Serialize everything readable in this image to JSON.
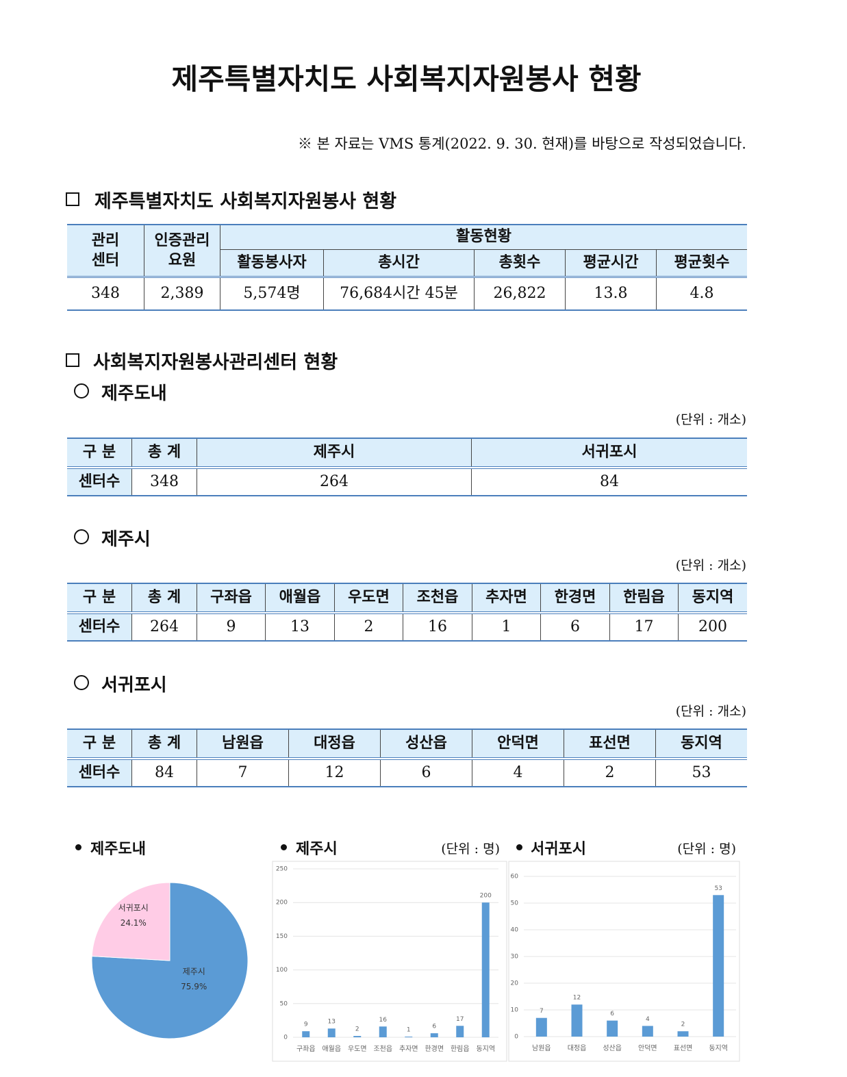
{
  "header": {
    "title": "제주특별자치도 사회복지자원봉사 현황",
    "note": "※ 본 자료는 VMS 통계(2022. 9. 30. 현재)를 바탕으로 작성되었습니다."
  },
  "section1": {
    "heading": "제주특별자치도 사회복지자원봉사 현황",
    "table": {
      "headers": [
        "관리\n센터",
        "인증관리\n요원",
        "활동현황"
      ],
      "subheaders": [
        "활동봉사자",
        "총시간",
        "총횟수",
        "평균시간",
        "평균횟수"
      ],
      "row": [
        "348",
        "2,389",
        "5,574명",
        "76,684시간 45분",
        "26,822",
        "13.8",
        "4.8"
      ]
    }
  },
  "section2": {
    "heading": "사회복지자원봉사관리센터 현황",
    "subsections": [
      {
        "heading": "제주도내",
        "unit": "(단위 : 개소)",
        "headers": [
          "구 분",
          "총 계",
          "제주시",
          "서귀포시"
        ],
        "row": [
          "센터수",
          "348",
          "264",
          "84"
        ]
      },
      {
        "heading": "제주시",
        "unit": "(단위 : 개소)",
        "headers": [
          "구 분",
          "총 계",
          "구좌읍",
          "애월읍",
          "우도면",
          "조천읍",
          "추자면",
          "한경면",
          "한림읍",
          "동지역"
        ],
        "row": [
          "센터수",
          "264",
          "9",
          "13",
          "2",
          "16",
          "1",
          "6",
          "17",
          "200"
        ]
      },
      {
        "heading": "서귀포시",
        "unit": "(단위 : 개소)",
        "headers": [
          "구 분",
          "총 계",
          "남원읍",
          "대정읍",
          "성산읍",
          "안덕면",
          "표선면",
          "동지역"
        ],
        "row": [
          "센터수",
          "84",
          "7",
          "12",
          "6",
          "4",
          "2",
          "53"
        ]
      }
    ]
  },
  "chart_data": [
    {
      "type": "pie",
      "title": "제주도내",
      "categories": [
        "제주시",
        "서귀포시"
      ],
      "values": [
        75.9,
        24.1
      ],
      "value_labels": [
        "75.9%",
        "24.1%"
      ],
      "colors": [
        "#5b9bd5",
        "#ffcce6"
      ]
    },
    {
      "type": "bar",
      "title": "제주시",
      "unit": "(단위 : 명)",
      "categories": [
        "구좌읍",
        "애월읍",
        "우도면",
        "조천읍",
        "추자면",
        "한경면",
        "한림읍",
        "동지역"
      ],
      "values": [
        9,
        13,
        2,
        16,
        1,
        6,
        17,
        200
      ],
      "color": "#5b9bd5",
      "ylim": [
        0,
        250
      ],
      "yticks": [
        0,
        50,
        100,
        150,
        200,
        250
      ],
      "grid": true
    },
    {
      "type": "bar",
      "title": "서귀포시",
      "unit": "(단위 : 명)",
      "categories": [
        "남원읍",
        "대정읍",
        "성산읍",
        "안덕면",
        "표선면",
        "동지역"
      ],
      "values": [
        7,
        12,
        6,
        4,
        2,
        53
      ],
      "color": "#5b9bd5",
      "ylim": [
        0,
        60
      ],
      "yticks": [
        0,
        10,
        20,
        30,
        40,
        50,
        60
      ],
      "grid": true
    }
  ]
}
